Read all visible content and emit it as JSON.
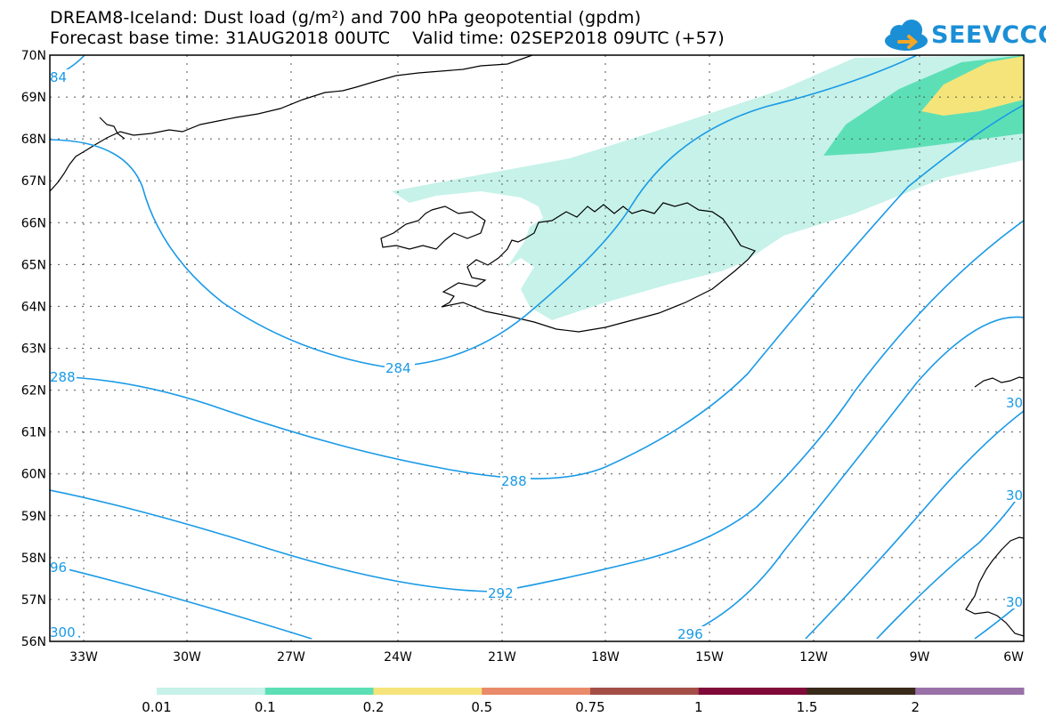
{
  "title": {
    "line1": "DREAM8-Iceland: Dust load (g/m²) and 700 hPa geopotential (gpdm)",
    "line2": "Forecast base time: 31AUG2018 00UTC    Valid time: 02SEP2018 09UTC (+57)"
  },
  "logo": {
    "text": "SEEVCCC",
    "icon": "cloud-icon",
    "color": "#1b8fd6"
  },
  "map": {
    "lat_labels": [
      "70N",
      "69N",
      "68N",
      "67N",
      "66N",
      "65N",
      "64N",
      "63N",
      "62N",
      "61N",
      "60N",
      "59N",
      "58N",
      "57N",
      "56N"
    ],
    "lon_labels": [
      "33W",
      "30W",
      "27W",
      "24W",
      "21W",
      "18W",
      "15W",
      "12W",
      "9W",
      "6W"
    ],
    "contour_color": "#1a9ae6",
    "contour_labels": [
      "84",
      "288",
      "284",
      "288",
      "292",
      "96",
      "300",
      "296",
      "30",
      "30",
      "30"
    ]
  },
  "legend": {
    "thresholds": [
      "0.01",
      "0.1",
      "0.2",
      "0.5",
      "0.75",
      "1",
      "1.5",
      "2"
    ],
    "colors": [
      "#c6f2e9",
      "#5ddfb6",
      "#f5e47a",
      "#e98a6a",
      "#a54e48",
      "#7f0a3a",
      "#3a2a1a",
      "#9a70a8"
    ]
  }
}
